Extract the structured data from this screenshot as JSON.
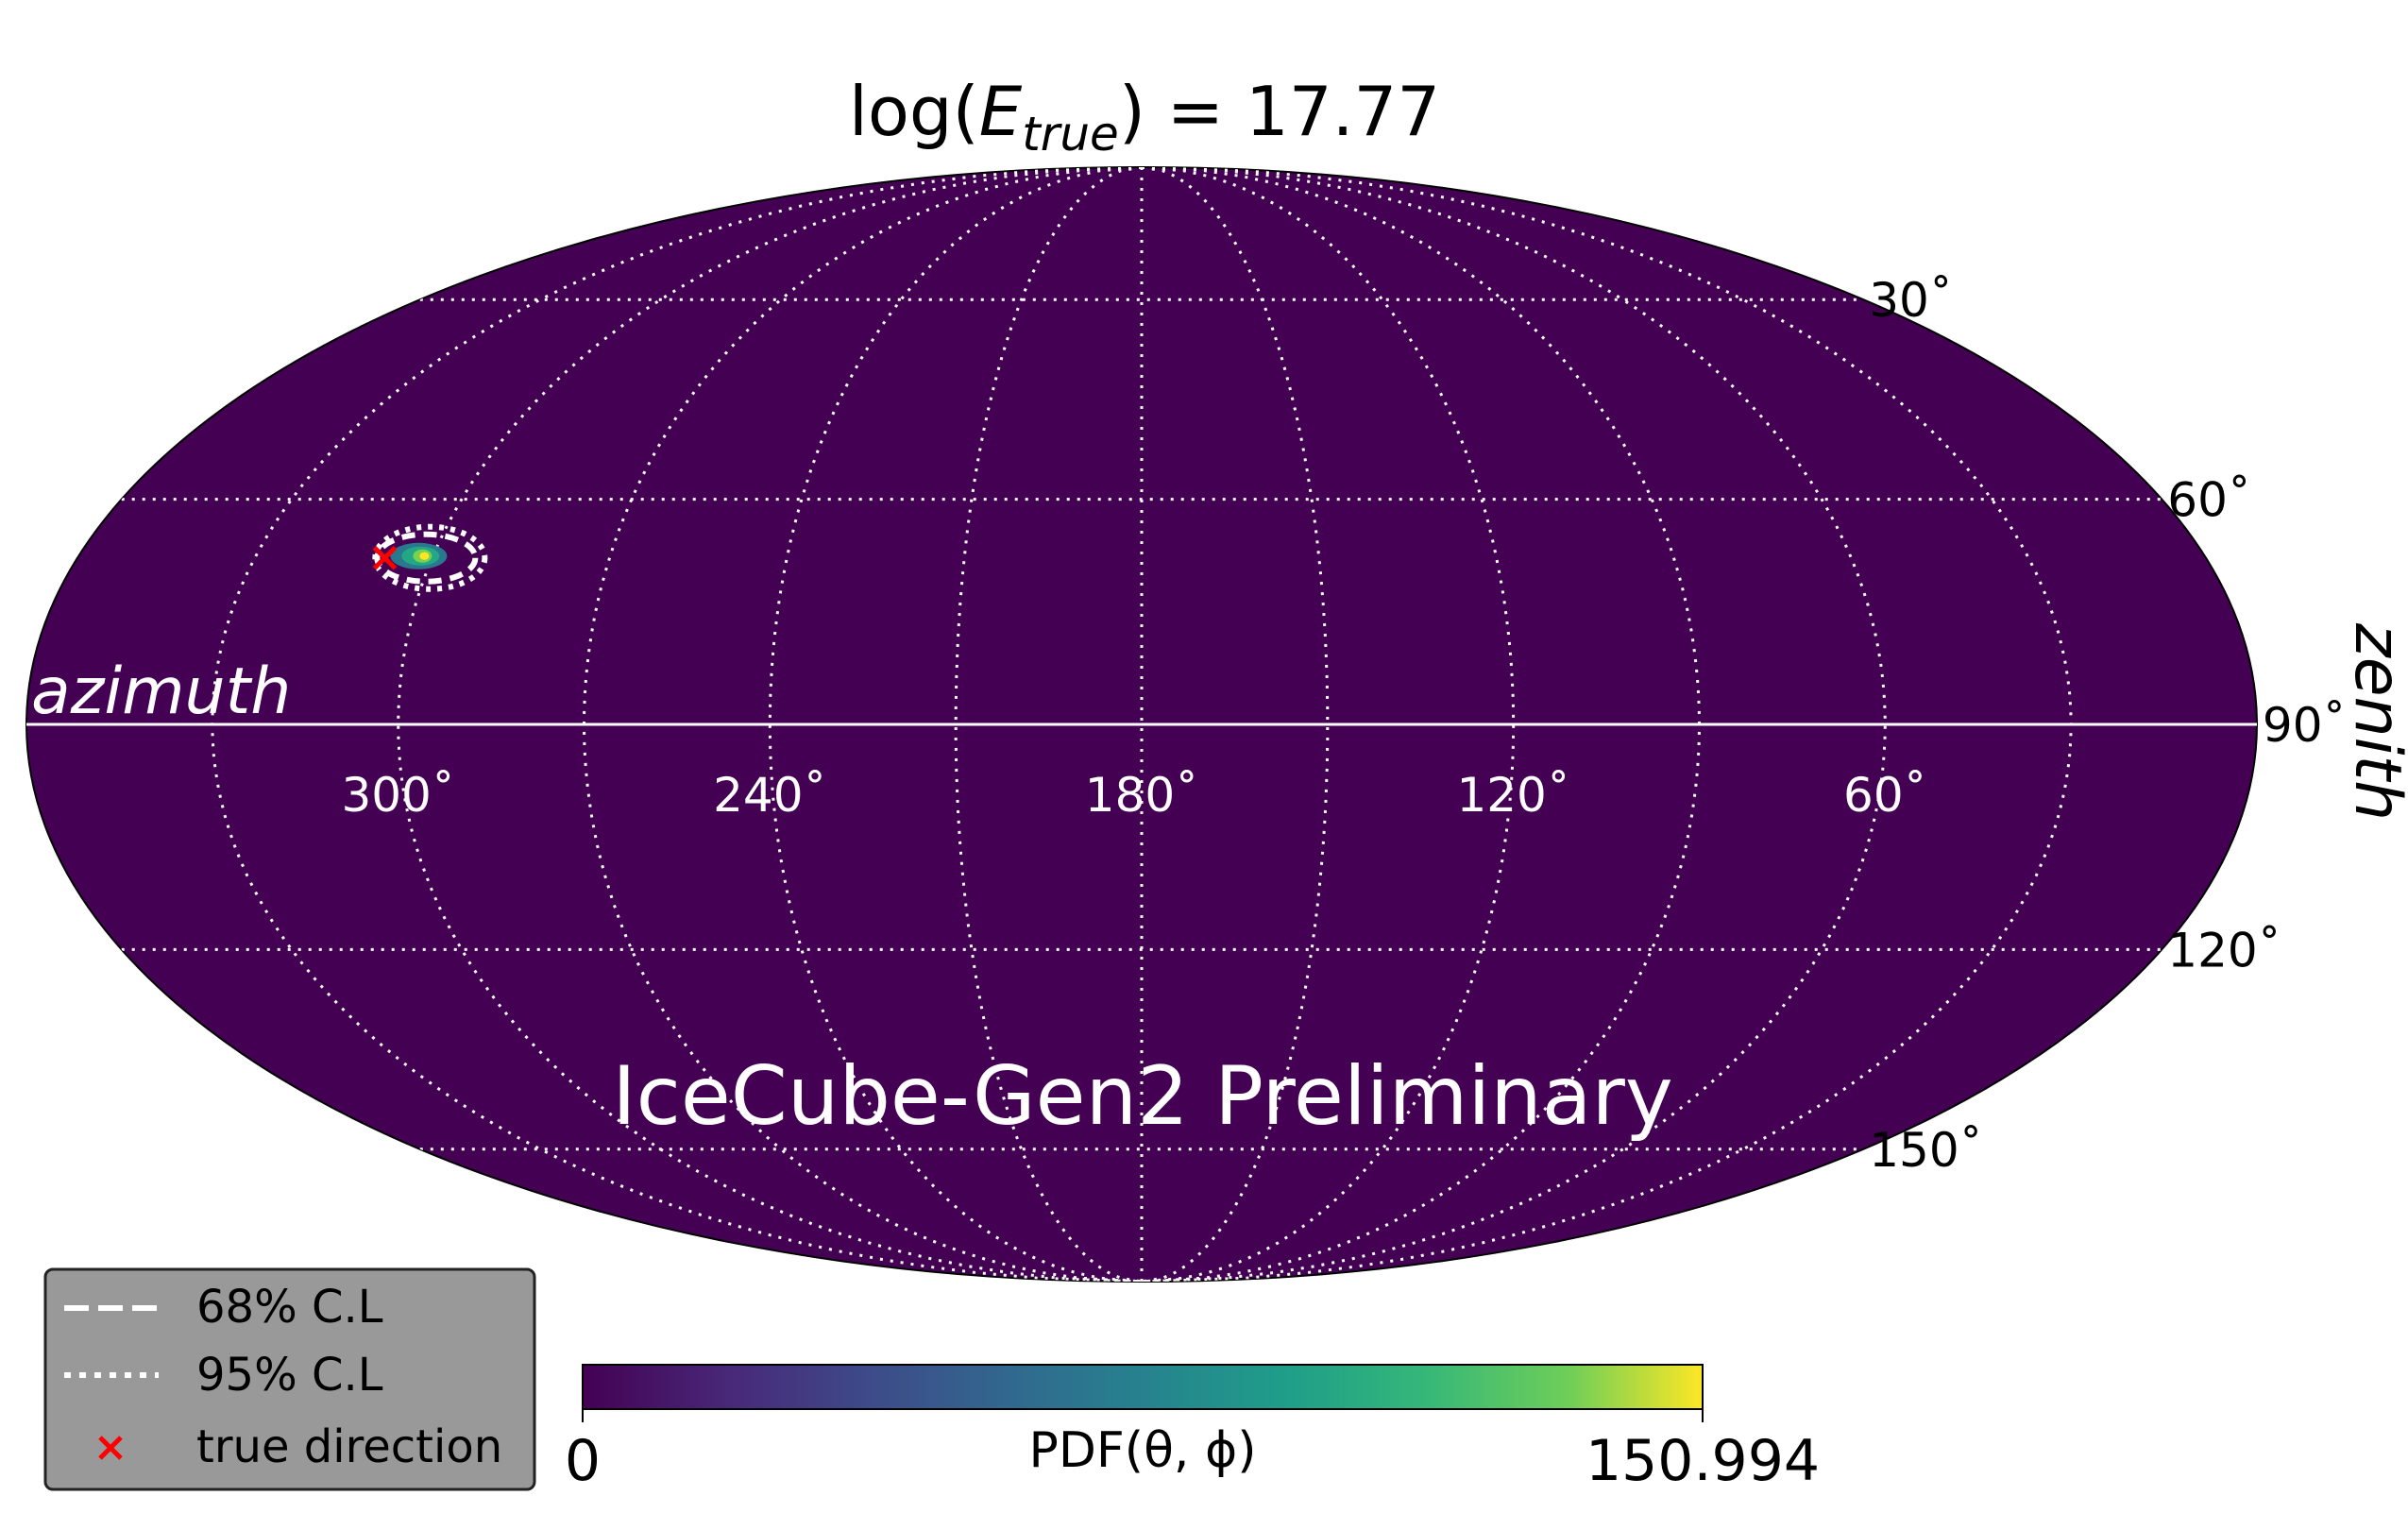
{
  "chart_data": {
    "type": "heatmap",
    "projection": "mollweide",
    "title": {
      "prefix": "log(",
      "symbol": "E",
      "subscript": "true",
      "suffix": ") = 17.77"
    },
    "watermark": "IceCube-Gen2 Preliminary",
    "xlabel": "azimuth",
    "ylabel": "zenith",
    "azimuth_range": [
      0,
      360
    ],
    "zenith_range": [
      0,
      180
    ],
    "azimuth_ticks": [
      "300˚",
      "240˚",
      "180˚",
      "120˚",
      "60˚"
    ],
    "zenith_ticks": [
      "30˚",
      "60˚",
      "90˚",
      "120˚",
      "150˚"
    ],
    "grid": true,
    "background_color": "#440154",
    "hotspot": {
      "azimuth": 301,
      "zenith": 68,
      "peak": 150.994
    },
    "true_direction": {
      "azimuth": 308,
      "zenith": 68
    },
    "colorbar": {
      "label": "PDF(θ, ϕ)",
      "min_label": "0",
      "max_label": "150.994",
      "min": 0,
      "max": 150.994,
      "colormap": "viridis"
    },
    "legend": {
      "placement": "bottom-left",
      "entries": [
        {
          "label": "68% C.L",
          "style": "dashed",
          "color": "#ffffff"
        },
        {
          "label": "95% C.L",
          "style": "dotted",
          "color": "#ffffff"
        },
        {
          "label": "true direction",
          "style": "x-marker",
          "color": "#ff0000"
        }
      ]
    }
  }
}
